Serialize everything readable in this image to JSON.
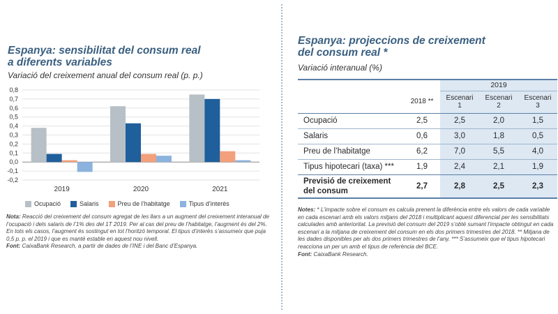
{
  "left": {
    "title_line1": "Espanya: sensibilitat del consum real",
    "title_line2": "a diferents variables",
    "subtitle": "Variació del creixement anual del consum real (p. p.)",
    "notes_label": "Nota:",
    "notes_text": " Reacció del creixement del consum agregat de les llars a un augment del creixement interanual de l’ocupació i dels salaris de l’1% des del 1T 2019. Per al cas del preu de l’habitatge, l’augment és del 2%. En tots els casos, l’augment és sostingut en tot l’horitzó temporal. El tipus d’interès s’assumeix que puja 0,5 p. p. el 2019 i que es manté estable en aquest nou nivell.",
    "source_label": "Font:",
    "source_text": " CaixaBank Research, a partir de dades de l’INE i del Banc d’Espanya."
  },
  "chart_data": {
    "type": "bar",
    "categories": [
      "2019",
      "2020",
      "2021"
    ],
    "series": [
      {
        "name": "Ocupació",
        "color": "#b7c0c7",
        "values": [
          0.38,
          0.62,
          0.75
        ]
      },
      {
        "name": "Salaris",
        "color": "#1f5f9b",
        "values": [
          0.09,
          0.43,
          0.7
        ]
      },
      {
        "name": "Preu de l’habitatge",
        "color": "#f3a07c",
        "values": [
          0.02,
          0.09,
          0.12
        ]
      },
      {
        "name": "Tipus d’interès",
        "color": "#8cb3dd",
        "values": [
          -0.11,
          0.07,
          0.02
        ]
      }
    ],
    "yticks": [
      "0,8",
      "0,7",
      "0,6",
      "0,5",
      "0,4",
      "0,3",
      "0,2",
      "0,1",
      "0,0",
      "-0,1",
      "-0,2"
    ],
    "ylim": [
      -0.2,
      0.8
    ],
    "title": "Espanya: sensibilitat del consum real a diferents variables",
    "ylabel": "Variació del creixement anual del consum real (p. p.)",
    "grid": true,
    "legend": "bottom"
  },
  "right": {
    "title_line1": "Espanya: projeccions de creixement",
    "title_line2": "del consum real *",
    "subtitle": "Variació interanual (%)",
    "year_header": "2019",
    "col_2018": "2018 **",
    "scen_word": "Escenari",
    "scen_nums": [
      "1",
      "2",
      "3"
    ],
    "rows": [
      {
        "label": "Ocupació",
        "v2018": "2,5",
        "s1": "2,5",
        "s2": "2,0",
        "s3": "1,5"
      },
      {
        "label": "Salaris",
        "v2018": "0,6",
        "s1": "3,0",
        "s2": "1,8",
        "s3": "0,5"
      },
      {
        "label": "Preu de l’habitatge",
        "v2018": "6,2",
        "s1": "7,0",
        "s2": "5,5",
        "s3": "4,0"
      },
      {
        "label": "Tipus hipotecari (taxa) ***",
        "v2018": "1,9",
        "s1": "2,4",
        "s2": "2,1",
        "s3": "1,9"
      }
    ],
    "total": {
      "label1": "Previsió de creixement",
      "label2": "del consum",
      "v2018": "2,7",
      "s1": "2,8",
      "s2": "2,5",
      "s3": "2,3"
    },
    "notes_label": "Notes:",
    "notes_text": " * L’impacte sobre el consum es calcula prenent la diferència entre els valors de cada variable en cada escenari amb els valors mitjans del 2018 i multiplicant aquest diferencial per les sensibilitats calculades amb anterioritat. La previsió del consum del 2019 s’obté sumant l’impacte obtingut en cada escenari a la mitjana de creixement del consum en els dos primers trimestres del 2018. ** Mitjana de les dades disponibles per als dos primers trimestres de l’any. *** S’assumeix que el tipus hipotecari reacciona un per un amb el tipus de referència del BCE.",
    "source_label": "Font:",
    "source_text": " CaixaBank Research."
  }
}
